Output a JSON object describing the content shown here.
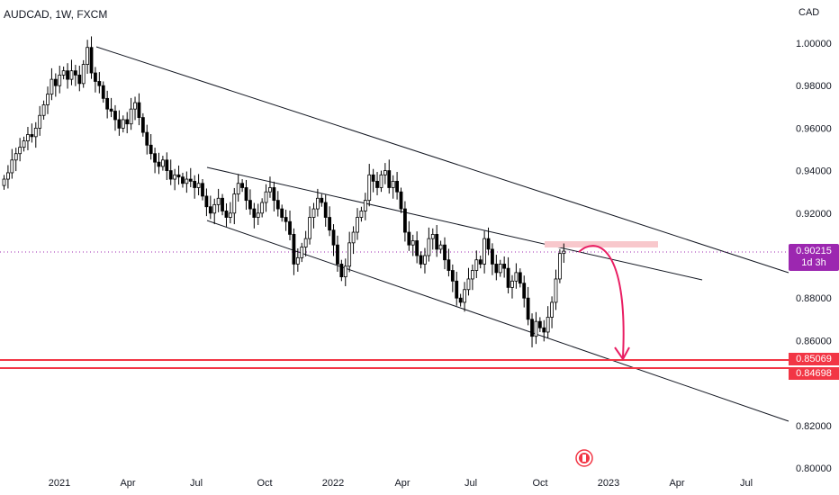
{
  "header": {
    "title": "AUDCAD, 1W, FXCM"
  },
  "axis": {
    "currency": "CAD"
  },
  "price_badge": {
    "value": "0.90215",
    "countdown": "1d 3h"
  },
  "levels": [
    {
      "label": "0.85069",
      "value": 0.85069
    },
    {
      "label": "0.84698",
      "value": 0.84698
    }
  ],
  "colors": {
    "up": "#ffffff",
    "down": "#000000",
    "level": "#f23645",
    "badge": "#9c27b0",
    "arrow": "#e91e63",
    "zone": "#f8c8cc"
  },
  "chart_data": {
    "type": "candlestick",
    "symbol": "AUDCAD",
    "interval": "1W",
    "source": "FXCM",
    "ylim": [
      0.8,
      1.01
    ],
    "y_ticks": [
      "1.00000",
      "0.98000",
      "0.96000",
      "0.94000",
      "0.92000",
      "0.88000",
      "0.86000",
      "0.82000",
      "0.80000"
    ],
    "x_ticks": [
      "2021",
      "Apr",
      "Jul",
      "Oct",
      "2022",
      "Apr",
      "Jul",
      "Oct",
      "2023",
      "Apr",
      "Jul"
    ],
    "current_price": 0.90215,
    "close": [
      0.936,
      0.939,
      0.945,
      0.948,
      0.951,
      0.954,
      0.957,
      0.956,
      0.96,
      0.966,
      0.971,
      0.976,
      0.983,
      0.98,
      0.985,
      0.987,
      0.983,
      0.987,
      0.985,
      0.981,
      0.99,
      0.998,
      0.986,
      0.982,
      0.98,
      0.974,
      0.969,
      0.968,
      0.964,
      0.96,
      0.964,
      0.962,
      0.969,
      0.972,
      0.965,
      0.958,
      0.952,
      0.948,
      0.944,
      0.942,
      0.945,
      0.94,
      0.936,
      0.938,
      0.937,
      0.934,
      0.936,
      0.935,
      0.932,
      0.934,
      0.928,
      0.923,
      0.92,
      0.924,
      0.927,
      0.921,
      0.918,
      0.92,
      0.929,
      0.934,
      0.932,
      0.926,
      0.922,
      0.918,
      0.92,
      0.925,
      0.93,
      0.932,
      0.926,
      0.922,
      0.918,
      0.916,
      0.91,
      0.896,
      0.899,
      0.904,
      0.908,
      0.918,
      0.922,
      0.927,
      0.925,
      0.918,
      0.912,
      0.905,
      0.896,
      0.89,
      0.895,
      0.906,
      0.911,
      0.918,
      0.921,
      0.926,
      0.938,
      0.935,
      0.932,
      0.938,
      0.94,
      0.932,
      0.935,
      0.93,
      0.922,
      0.911,
      0.905,
      0.907,
      0.9,
      0.896,
      0.9,
      0.908,
      0.91,
      0.903,
      0.905,
      0.898,
      0.893,
      0.888,
      0.88,
      0.878,
      0.884,
      0.889,
      0.893,
      0.898,
      0.896,
      0.908,
      0.903,
      0.896,
      0.892,
      0.896,
      0.894,
      0.885,
      0.888,
      0.892,
      0.887,
      0.88,
      0.87,
      0.862,
      0.869,
      0.866,
      0.864,
      0.871,
      0.878,
      0.889,
      0.901,
      0.9021
    ]
  }
}
